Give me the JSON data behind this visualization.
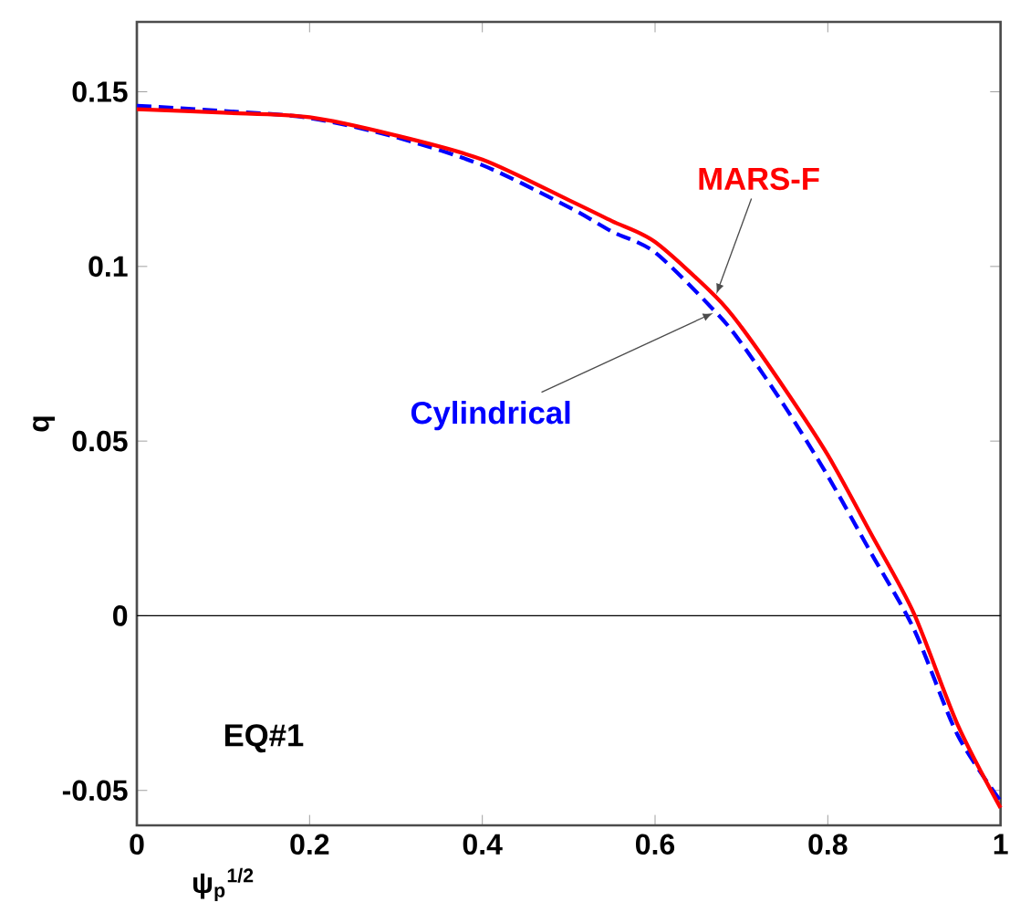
{
  "chart_data": {
    "type": "line",
    "xlabel": "ψ$_{p}$$^{1/2}$",
    "ylabel": "q",
    "x": [
      0,
      0.1,
      0.2,
      0.3,
      0.4,
      0.5,
      0.55,
      0.6,
      0.67,
      0.7,
      0.75,
      0.8,
      0.85,
      0.9,
      0.95,
      1.0
    ],
    "series": [
      {
        "name": "MARS-F",
        "color": "#ff0000",
        "line_style": "solid",
        "values": [
          0.145,
          0.144,
          0.1427,
          0.1375,
          0.1306,
          0.119,
          0.113,
          0.107,
          0.0914,
          0.0826,
          0.065,
          0.046,
          0.0235,
          0.0005,
          -0.031,
          -0.055
        ]
      },
      {
        "name": "Cylindrical",
        "color": "#0000ff",
        "line_style": "dashed",
        "values": [
          0.146,
          0.1445,
          0.1425,
          0.137,
          0.129,
          0.117,
          0.11,
          0.104,
          0.087,
          0.078,
          0.06,
          0.04,
          0.018,
          -0.004,
          -0.034,
          -0.053
        ]
      }
    ],
    "xlim": [
      0,
      1
    ],
    "ylim": [
      -0.06,
      0.17
    ],
    "xticks": [
      0,
      0.2,
      0.4,
      0.6,
      0.8,
      1
    ],
    "yticks": [
      -0.05,
      0,
      0.05,
      0.1,
      0.15
    ],
    "ref_lines": [
      {
        "axis": "y",
        "value": 0,
        "color": "#000000"
      }
    ],
    "annotations": [
      "EQ#1"
    ]
  }
}
